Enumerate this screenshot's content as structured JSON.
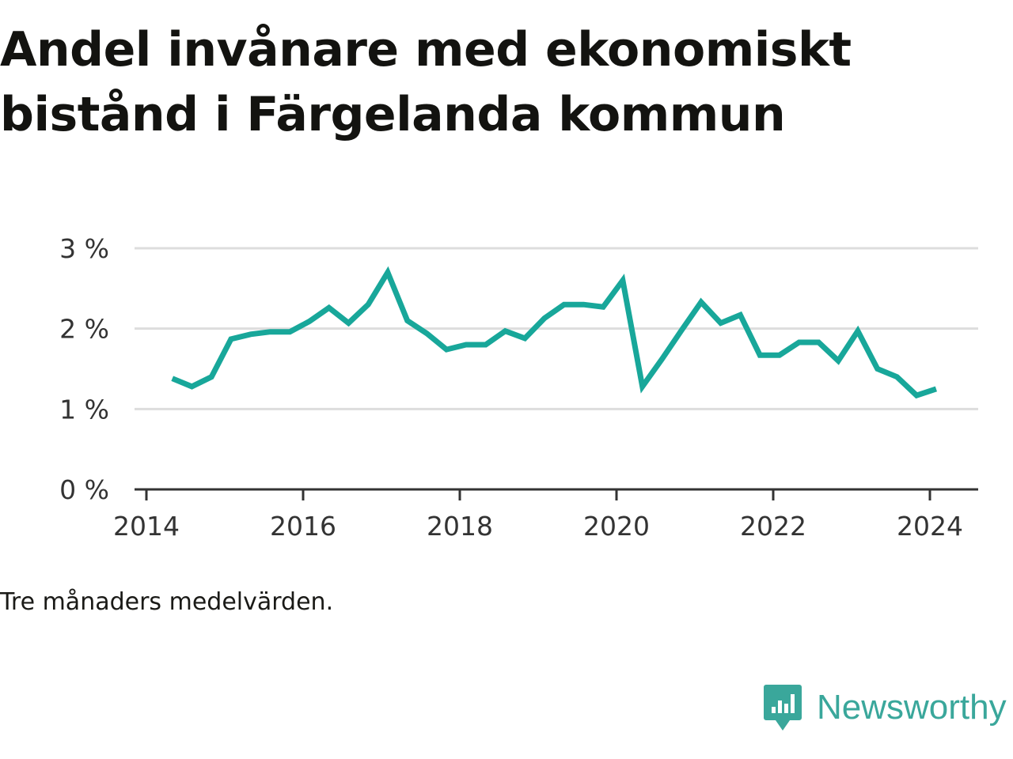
{
  "title_line1": "Andel invånare med ekonomiskt",
  "title_line2": "bistånd i Färgelanda kommun",
  "caption": "Tre månaders medelvärden.",
  "brand": "Newsworthy",
  "colors": {
    "line": "#18a79a",
    "grid": "#dddddd",
    "axis": "#333333",
    "brand": "#3aa79b"
  },
  "chart_data": {
    "type": "line",
    "title": "Andel invånare med ekonomiskt bistånd i Färgelanda kommun",
    "ylim": [
      0,
      3
    ],
    "yticks": [
      0,
      1,
      2,
      3
    ],
    "ytick_labels": [
      "0 %",
      "1 %",
      "2 %",
      "3 %"
    ],
    "xlim": [
      2014,
      2024.6
    ],
    "xticks": [
      2014,
      2016,
      2018,
      2020,
      2022,
      2024
    ],
    "xtick_labels": [
      "2014",
      "2016",
      "2018",
      "2020",
      "2022",
      "2024"
    ],
    "grid": true,
    "series": [
      {
        "x": [
          2014.33,
          2014.58,
          2014.83,
          2015.08,
          2015.33,
          2015.58,
          2015.83,
          2016.08,
          2016.33,
          2016.58,
          2016.83,
          2017.08,
          2017.33,
          2017.58,
          2017.83,
          2018.08,
          2018.33,
          2018.58,
          2018.83,
          2019.08,
          2019.33,
          2019.58,
          2019.83,
          2020.08,
          2020.33,
          2020.58,
          2020.83,
          2021.08,
          2021.33,
          2021.58,
          2021.83,
          2022.08,
          2022.33,
          2022.58,
          2022.83,
          2023.08,
          2023.33,
          2023.58,
          2023.83,
          2024.08
        ],
        "values": [
          1.38,
          1.28,
          1.4,
          1.87,
          1.93,
          1.96,
          1.96,
          2.09,
          2.26,
          2.07,
          2.3,
          2.7,
          2.1,
          1.94,
          1.74,
          1.8,
          1.8,
          1.97,
          1.88,
          2.13,
          2.3,
          2.3,
          2.27,
          2.6,
          1.28,
          1.62,
          1.98,
          2.33,
          2.07,
          2.17,
          1.67,
          1.67,
          1.83,
          1.83,
          1.6,
          1.97,
          1.5,
          1.4,
          1.17,
          1.25
        ]
      }
    ]
  }
}
